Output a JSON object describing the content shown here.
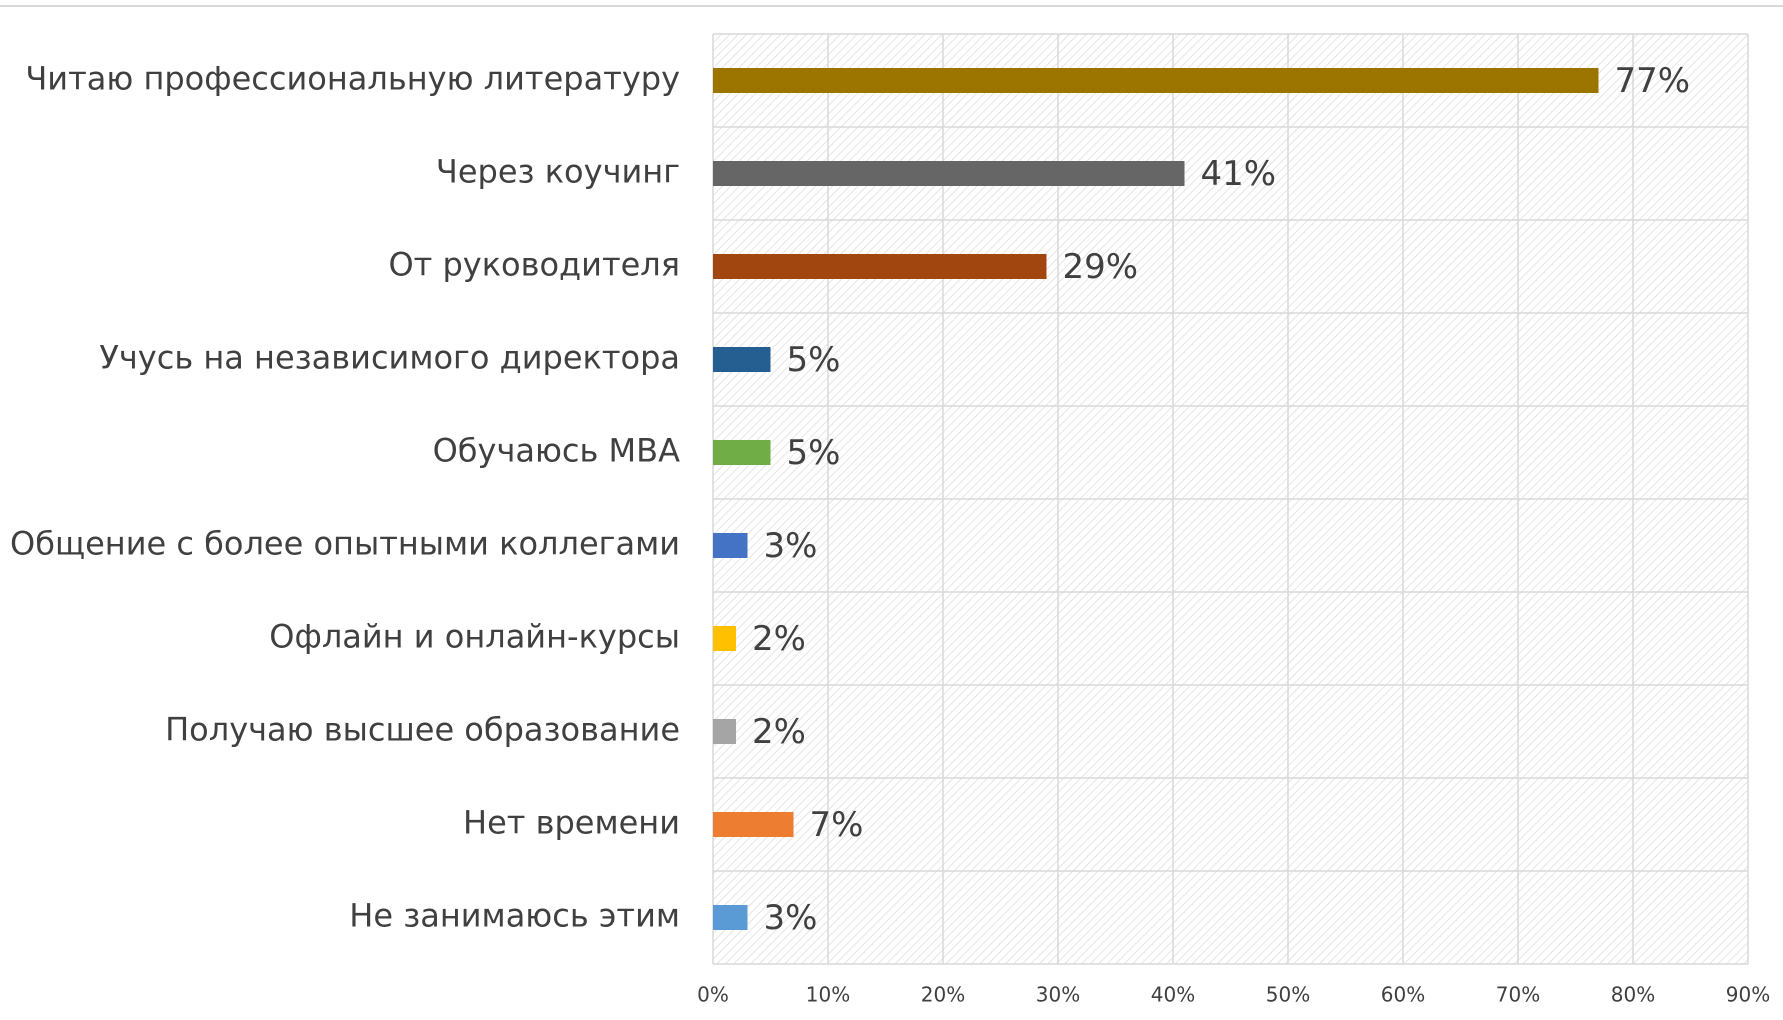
{
  "chart_data": {
    "type": "bar",
    "orientation": "horizontal",
    "categories": [
      "Читаю профессиональную литературу",
      "Через коучинг",
      "От руководителя",
      "Учусь на независимого директора",
      "Обучаюсь MBA",
      "Общение с более опытными коллегами",
      "Офлайн и онлайн-курсы",
      "Получаю высшее образование",
      "Нет времени",
      "Не занимаюсь этим"
    ],
    "values": [
      77,
      41,
      29,
      5,
      5,
      3,
      2,
      2,
      7,
      3
    ],
    "value_labels": [
      "77%",
      "41%",
      "29%",
      "5%",
      "5%",
      "3%",
      "2%",
      "2%",
      "7%",
      "3%"
    ],
    "colors": [
      "#9c7400",
      "#666666",
      "#a0460e",
      "#255e91",
      "#70ad47",
      "#4472c4",
      "#ffc000",
      "#a5a5a5",
      "#ed7d31",
      "#5b9bd5"
    ],
    "xlim": [
      0,
      90
    ],
    "xticks": [
      {
        "value": 0,
        "label": "0%"
      },
      {
        "value": 10,
        "label": "10%"
      },
      {
        "value": 20,
        "label": "20%"
      },
      {
        "value": 30,
        "label": "30%"
      },
      {
        "value": 40,
        "label": "40%"
      },
      {
        "value": 50,
        "label": "50%"
      },
      {
        "value": 60,
        "label": "60%"
      },
      {
        "value": 70,
        "label": "70%"
      },
      {
        "value": 80,
        "label": "80%"
      },
      {
        "value": 90,
        "label": "90%"
      }
    ],
    "grid": true
  }
}
